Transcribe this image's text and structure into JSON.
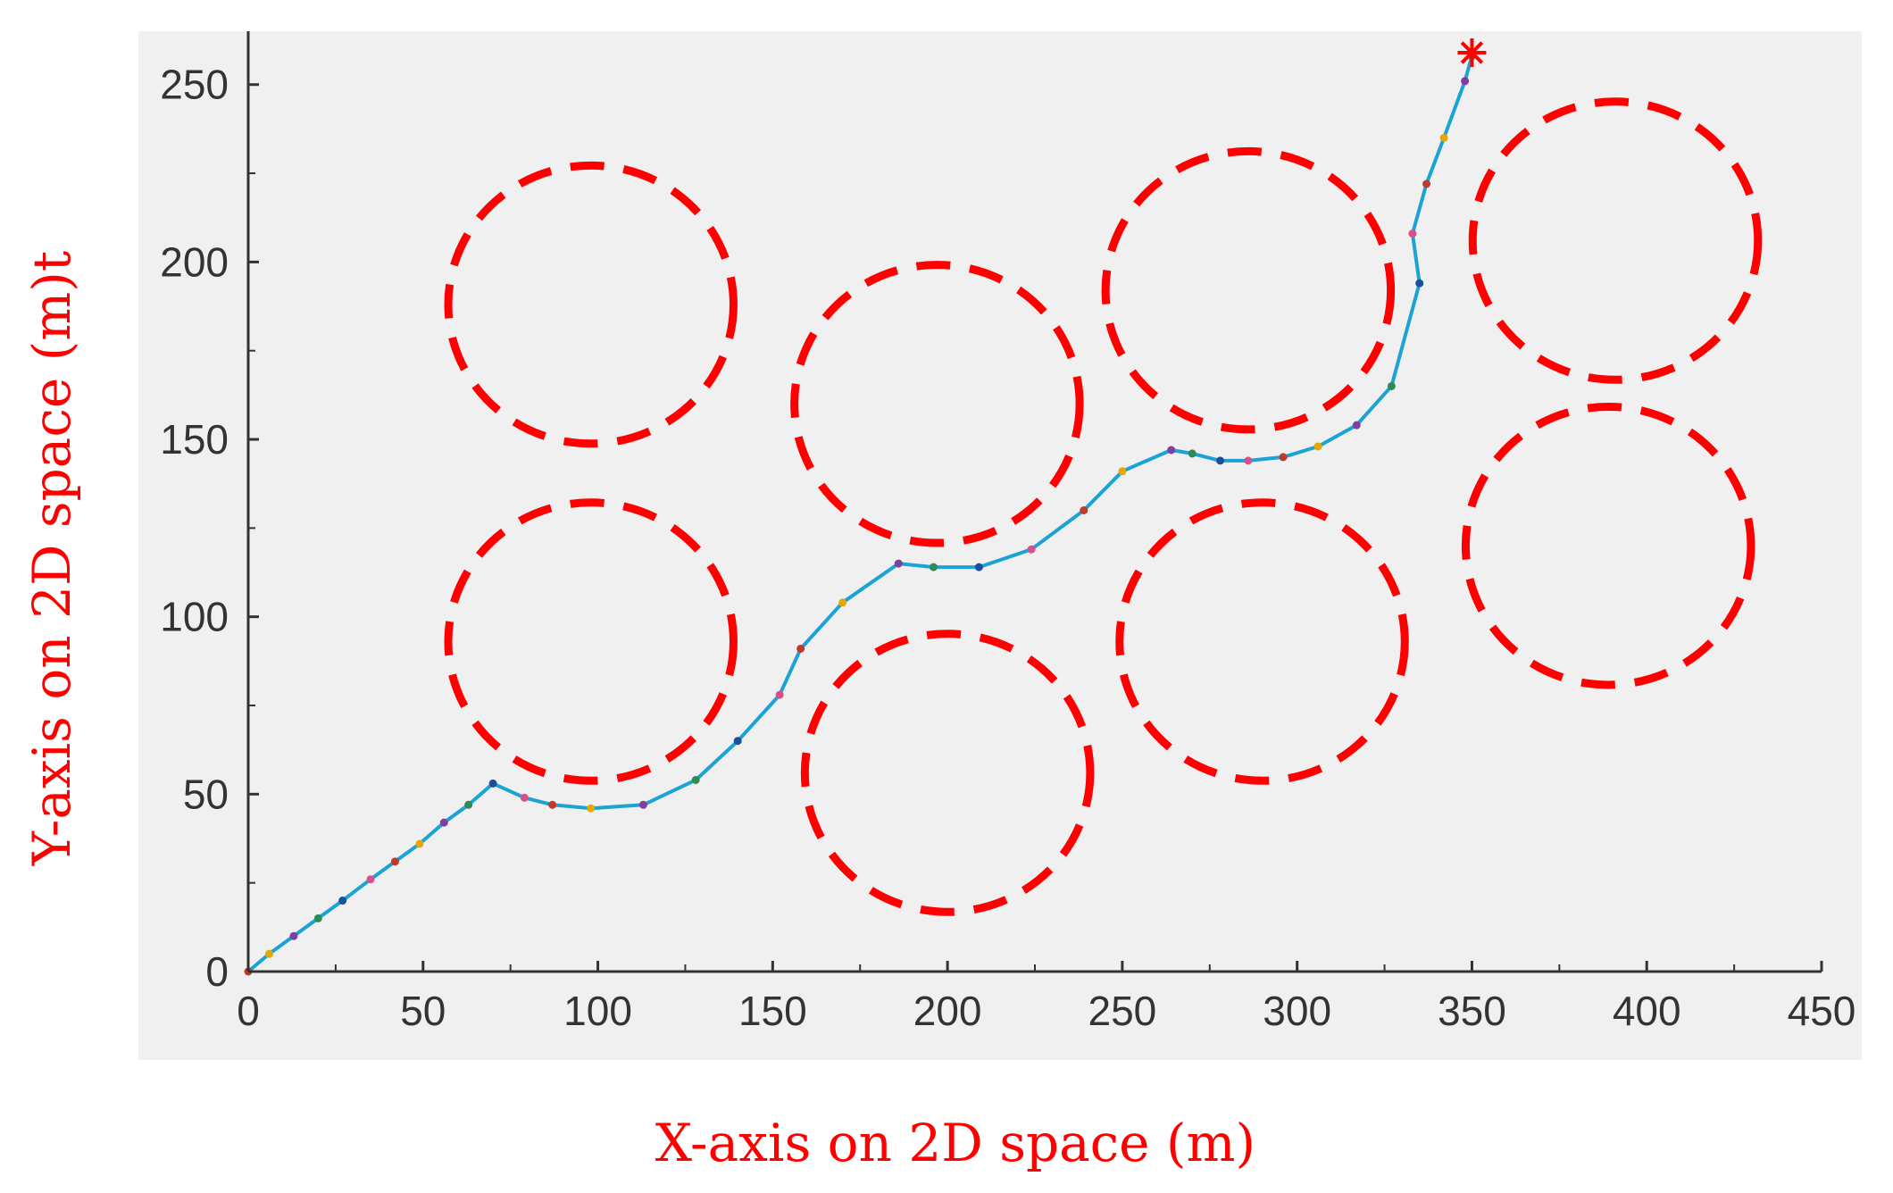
{
  "chart_data": {
    "type": "line",
    "xlabel": "X-axis on 2D space (m)",
    "ylabel": "Y-axis on 2D space (m)t",
    "xlim": [
      0,
      450
    ],
    "ylim": [
      0,
      260
    ],
    "x_ticks": [
      0,
      50,
      100,
      150,
      200,
      250,
      300,
      350,
      400,
      450
    ],
    "y_ticks": [
      0,
      50,
      100,
      150,
      200,
      250
    ],
    "grid": false,
    "series": [
      {
        "marker": "dots",
        "color": "#1ba3d6",
        "points": [
          [
            0,
            0
          ],
          [
            6,
            5
          ],
          [
            13,
            10
          ],
          [
            20,
            15
          ],
          [
            27,
            20
          ],
          [
            35,
            26
          ],
          [
            42,
            31
          ],
          [
            49,
            36
          ],
          [
            56,
            42
          ],
          [
            63,
            47
          ],
          [
            70,
            53
          ],
          [
            79,
            49
          ],
          [
            87,
            47
          ],
          [
            98,
            46
          ],
          [
            113,
            47
          ],
          [
            128,
            54
          ],
          [
            140,
            65
          ],
          [
            152,
            78
          ],
          [
            158,
            91
          ],
          [
            170,
            104
          ],
          [
            186,
            115
          ],
          [
            196,
            114
          ],
          [
            209,
            114
          ],
          [
            224,
            119
          ],
          [
            239,
            130
          ],
          [
            250,
            141
          ],
          [
            264,
            147
          ],
          [
            270,
            146
          ],
          [
            278,
            144
          ],
          [
            286,
            144
          ],
          [
            296,
            145
          ],
          [
            306,
            148
          ],
          [
            317,
            154
          ],
          [
            327,
            165
          ],
          [
            335,
            194
          ],
          [
            333,
            208
          ],
          [
            337,
            222
          ],
          [
            342,
            235
          ],
          [
            348,
            251
          ],
          [
            350,
            258
          ]
        ]
      }
    ],
    "target_marker": {
      "x": 350,
      "y": 259,
      "symbol": "*",
      "color": "#ff0000"
    },
    "obstacles": {
      "style": "dashed",
      "color": "#ff0000",
      "radius": 40,
      "centers": [
        [
          98,
          188
        ],
        [
          98,
          93
        ],
        [
          197,
          160
        ],
        [
          200,
          56
        ],
        [
          286,
          192
        ],
        [
          290,
          93
        ],
        [
          391,
          206
        ],
        [
          389,
          120
        ]
      ]
    }
  },
  "colors": {
    "plot_background": "#f0f0f0",
    "axis": "#333333",
    "title": "#ff0000",
    "path": "#1ba3d6",
    "obstacle": "#ff0000"
  }
}
